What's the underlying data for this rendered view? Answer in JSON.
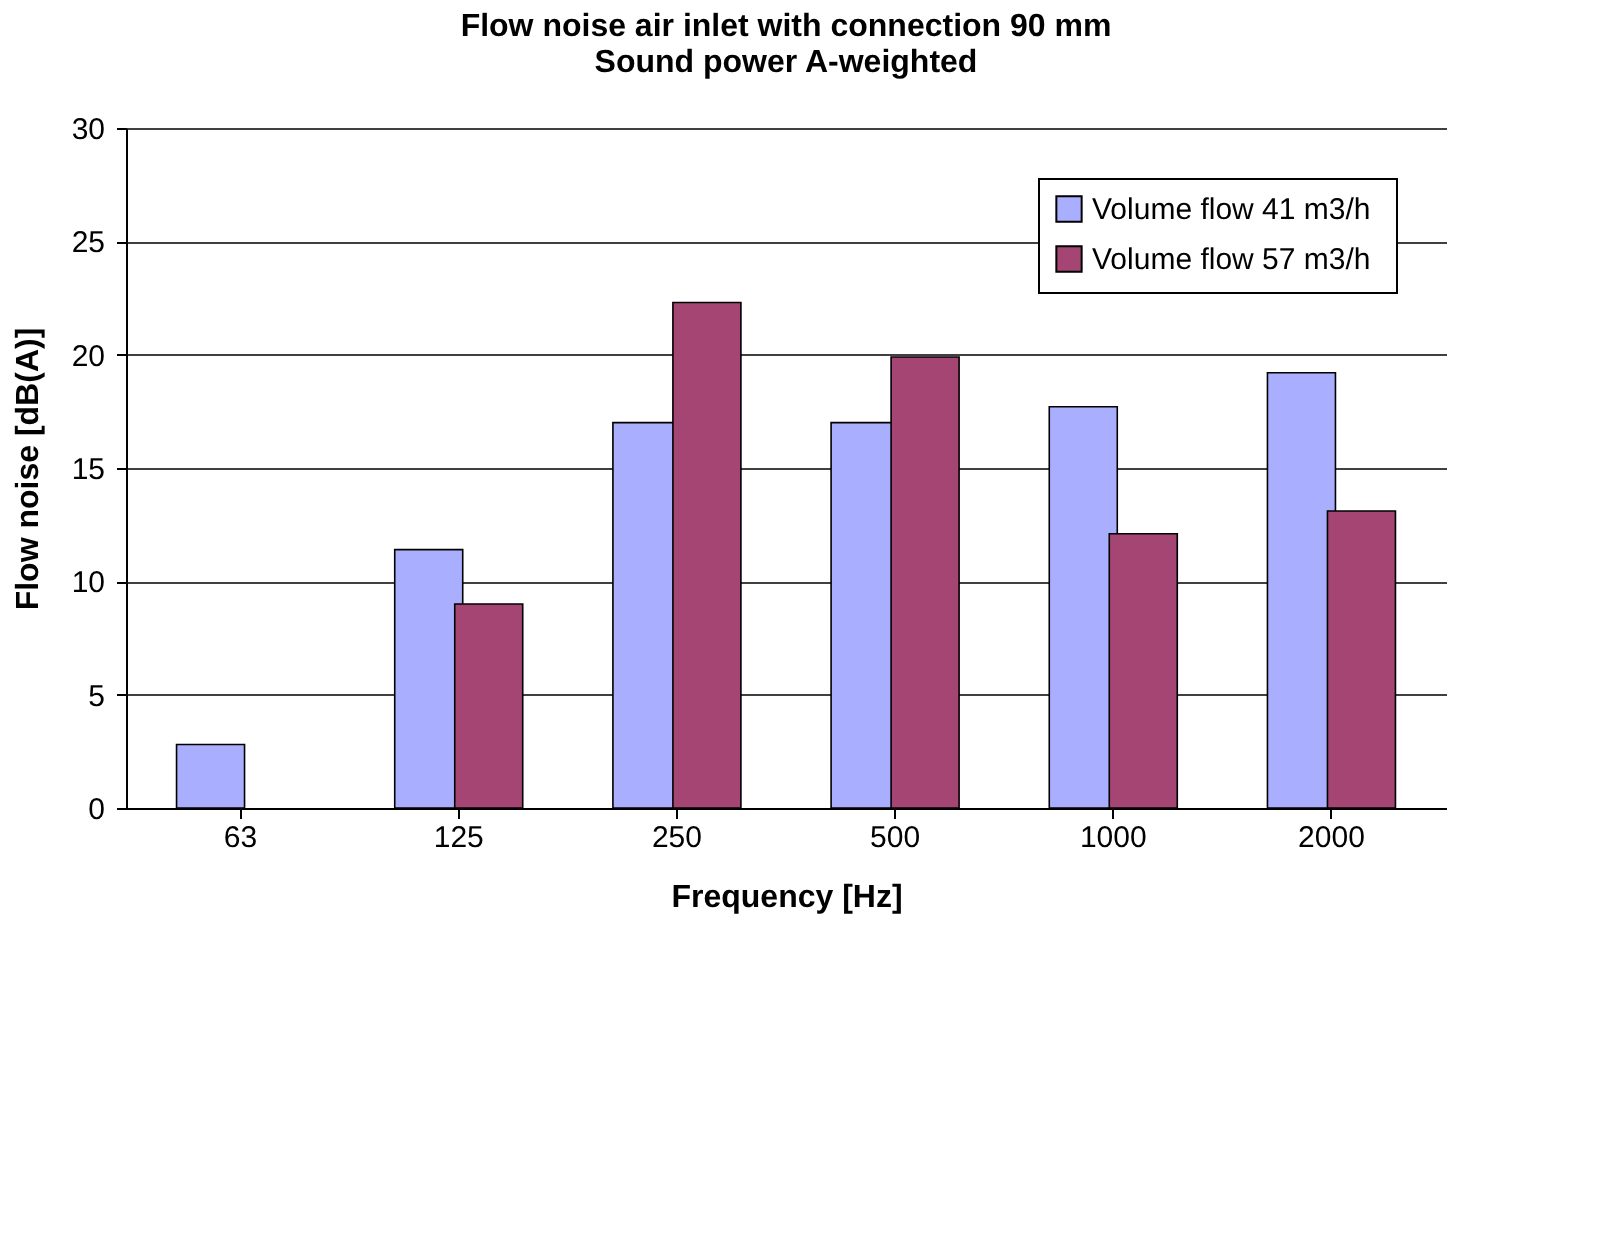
{
  "chart_data": {
    "type": "bar",
    "title": [
      "Flow noise air inlet with connection 90 mm",
      "Sound power A-weighted"
    ],
    "xlabel": "Frequency [Hz]",
    "ylabel": "Flow noise [dB(A)]",
    "categories": [
      "63",
      "125",
      "250",
      "500",
      "1000",
      "2000"
    ],
    "series": [
      {
        "name": "Volume flow  41 m3/h",
        "color": "#aaaeff",
        "values": [
          2.8,
          11.4,
          17.0,
          17.0,
          17.7,
          19.2
        ]
      },
      {
        "name": "Volume flow  57 m3/h",
        "color": "#a44574",
        "values": [
          null,
          9.0,
          22.3,
          19.9,
          12.1,
          13.1
        ]
      }
    ],
    "ylim": [
      0,
      30
    ],
    "yticks": [
      0,
      5,
      10,
      15,
      20,
      25,
      30
    ],
    "grid": "y",
    "legend": "top right"
  }
}
